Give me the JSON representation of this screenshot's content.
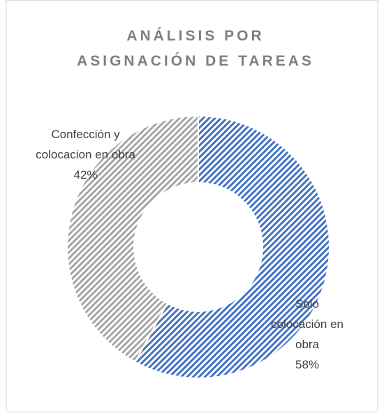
{
  "chart_data": {
    "type": "doughnut",
    "title": "ANÁLISIS POR ASIGNACIÓN DE TAREAS",
    "categories": [
      "Solo colocación en obra",
      "Confección y colocacion en obra"
    ],
    "values": [
      58,
      42
    ],
    "value_labels": [
      "58%",
      "42%"
    ],
    "colors": [
      "#4472c4",
      "#a5a5a5"
    ]
  }
}
